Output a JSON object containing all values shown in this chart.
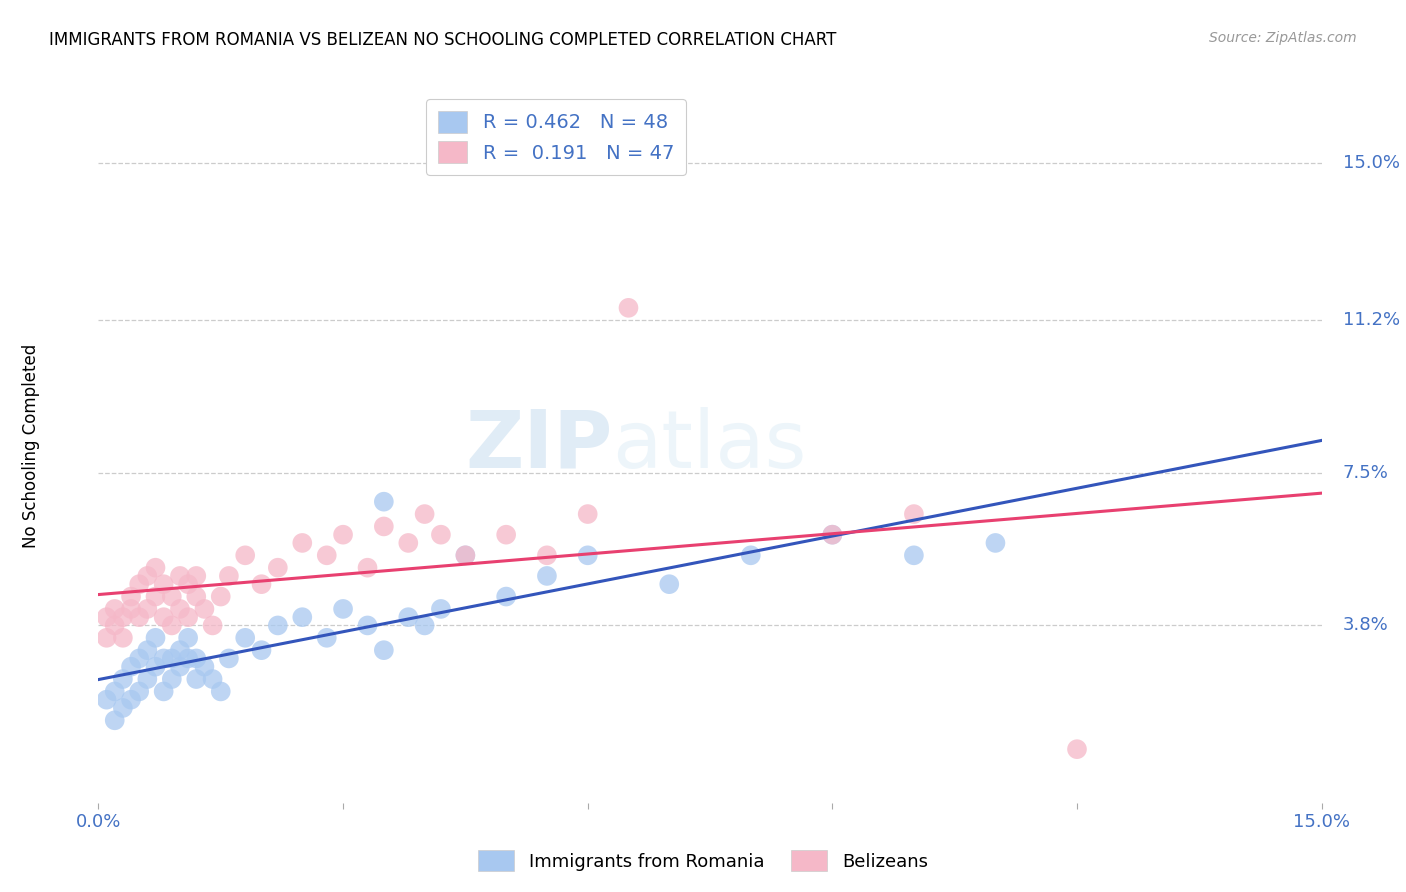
{
  "title": "IMMIGRANTS FROM ROMANIA VS BELIZEAN NO SCHOOLING COMPLETED CORRELATION CHART",
  "source": "Source: ZipAtlas.com",
  "ylabel": "No Schooling Completed",
  "ytick_labels": [
    "3.8%",
    "7.5%",
    "11.2%",
    "15.0%"
  ],
  "ytick_values": [
    0.038,
    0.075,
    0.112,
    0.15
  ],
  "xlim": [
    0.0,
    0.15
  ],
  "ylim": [
    -0.005,
    0.168
  ],
  "legend_blue_r": "0.462",
  "legend_blue_n": "48",
  "legend_pink_r": "0.191",
  "legend_pink_n": "47",
  "legend_blue_label": "Immigrants from Romania",
  "legend_pink_label": "Belizeans",
  "blue_color": "#A8C8F0",
  "pink_color": "#F5B8C8",
  "blue_line_color": "#3355BB",
  "pink_line_color": "#E84070",
  "watermark_zip": "ZIP",
  "watermark_atlas": "atlas",
  "blue_scatter_x": [
    0.001,
    0.002,
    0.002,
    0.003,
    0.003,
    0.004,
    0.004,
    0.005,
    0.005,
    0.006,
    0.006,
    0.007,
    0.007,
    0.008,
    0.008,
    0.009,
    0.009,
    0.01,
    0.01,
    0.011,
    0.011,
    0.012,
    0.012,
    0.013,
    0.014,
    0.015,
    0.016,
    0.018,
    0.02,
    0.022,
    0.025,
    0.028,
    0.03,
    0.033,
    0.035,
    0.038,
    0.04,
    0.042,
    0.045,
    0.05,
    0.055,
    0.06,
    0.07,
    0.08,
    0.09,
    0.1,
    0.11,
    0.035
  ],
  "blue_scatter_y": [
    0.02,
    0.015,
    0.022,
    0.018,
    0.025,
    0.02,
    0.028,
    0.022,
    0.03,
    0.025,
    0.032,
    0.028,
    0.035,
    0.03,
    0.022,
    0.025,
    0.03,
    0.028,
    0.032,
    0.03,
    0.035,
    0.025,
    0.03,
    0.028,
    0.025,
    0.022,
    0.03,
    0.035,
    0.032,
    0.038,
    0.04,
    0.035,
    0.042,
    0.038,
    0.032,
    0.04,
    0.038,
    0.042,
    0.055,
    0.045,
    0.05,
    0.055,
    0.048,
    0.055,
    0.06,
    0.055,
    0.058,
    0.068
  ],
  "pink_scatter_x": [
    0.001,
    0.001,
    0.002,
    0.002,
    0.003,
    0.003,
    0.004,
    0.004,
    0.005,
    0.005,
    0.006,
    0.006,
    0.007,
    0.007,
    0.008,
    0.008,
    0.009,
    0.009,
    0.01,
    0.01,
    0.011,
    0.011,
    0.012,
    0.012,
    0.013,
    0.014,
    0.015,
    0.016,
    0.018,
    0.02,
    0.022,
    0.025,
    0.028,
    0.03,
    0.033,
    0.035,
    0.038,
    0.04,
    0.042,
    0.045,
    0.05,
    0.055,
    0.06,
    0.09,
    0.1,
    0.12,
    0.065
  ],
  "pink_scatter_y": [
    0.035,
    0.04,
    0.038,
    0.042,
    0.035,
    0.04,
    0.042,
    0.045,
    0.04,
    0.048,
    0.042,
    0.05,
    0.045,
    0.052,
    0.04,
    0.048,
    0.038,
    0.045,
    0.042,
    0.05,
    0.04,
    0.048,
    0.045,
    0.05,
    0.042,
    0.038,
    0.045,
    0.05,
    0.055,
    0.048,
    0.052,
    0.058,
    0.055,
    0.06,
    0.052,
    0.062,
    0.058,
    0.065,
    0.06,
    0.055,
    0.06,
    0.055,
    0.065,
    0.06,
    0.065,
    0.008,
    0.115
  ]
}
